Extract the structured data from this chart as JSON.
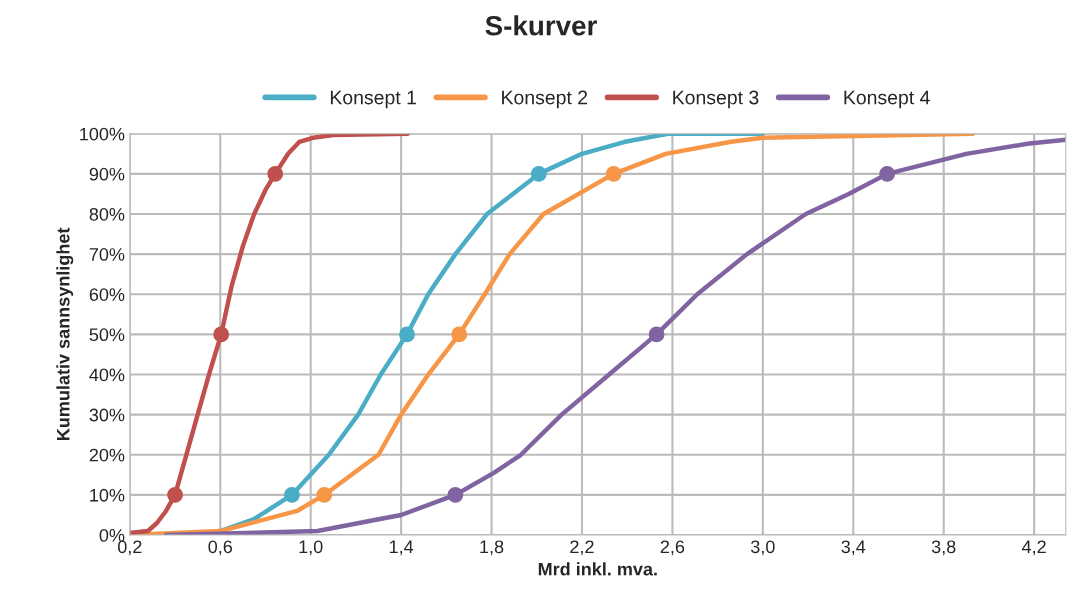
{
  "chart_data": {
    "type": "line",
    "title": "S-kurver",
    "xlabel": "Mrd inkl. mva.",
    "ylabel": "Kumulativ sannsynlighet",
    "xlim": [
      0.2,
      4.34
    ],
    "xticks": [
      {
        "value": 0.2,
        "label": "0,2"
      },
      {
        "value": 0.6,
        "label": "0,6"
      },
      {
        "value": 1.0,
        "label": "1,0"
      },
      {
        "value": 1.4,
        "label": "1,4"
      },
      {
        "value": 1.8,
        "label": "1,8"
      },
      {
        "value": 2.2,
        "label": "2,2"
      },
      {
        "value": 2.6,
        "label": "2,6"
      },
      {
        "value": 3.0,
        "label": "3,0"
      },
      {
        "value": 3.4,
        "label": "3,4"
      },
      {
        "value": 3.8,
        "label": "3,8"
      },
      {
        "value": 4.2,
        "label": "4,2"
      }
    ],
    "ylim": [
      0,
      100
    ],
    "yticks": [
      {
        "value": 0,
        "label": "0%"
      },
      {
        "value": 10,
        "label": "10%"
      },
      {
        "value": 20,
        "label": "20%"
      },
      {
        "value": 30,
        "label": "30%"
      },
      {
        "value": 40,
        "label": "40%"
      },
      {
        "value": 50,
        "label": "50%"
      },
      {
        "value": 60,
        "label": "60%"
      },
      {
        "value": 70,
        "label": "70%"
      },
      {
        "value": 80,
        "label": "80%"
      },
      {
        "value": 90,
        "label": "90%"
      },
      {
        "value": 100,
        "label": "100%"
      }
    ],
    "grid": true,
    "legend": "top",
    "marker": "none",
    "line_style": "solid",
    "series": [
      {
        "name": "Konsept 1",
        "color": "#4bacc6",
        "x": [
          0.6,
          0.75,
          0.917,
          1.08,
          1.21,
          1.31,
          1.426,
          1.52,
          1.64,
          1.78,
          2.009,
          2.2,
          2.39,
          2.58,
          3.0
        ],
        "values": [
          1,
          4,
          10,
          20,
          30,
          40,
          50,
          60,
          70,
          80,
          90,
          95,
          98,
          100,
          100
        ]
      },
      {
        "name": "Konsept 2",
        "color": "#f79646",
        "x": [
          0.2,
          0.6,
          0.94,
          1.06,
          1.3,
          1.4,
          1.52,
          1.657,
          1.77,
          1.88,
          2.03,
          2.34,
          2.57,
          2.86,
          3.0,
          3.93
        ],
        "values": [
          0,
          1,
          6,
          10,
          20,
          30,
          40,
          50,
          60,
          70,
          80,
          90,
          95,
          98,
          99,
          100
        ]
      },
      {
        "name": "Konsept 3",
        "color": "#c0504d",
        "x": [
          0.2,
          0.28,
          0.32,
          0.36,
          0.4,
          0.45,
          0.5,
          0.55,
          0.604,
          0.65,
          0.7,
          0.75,
          0.8,
          0.843,
          0.9,
          0.95,
          1.01,
          1.1,
          1.43
        ],
        "values": [
          0.5,
          1,
          3,
          6,
          10,
          20,
          30,
          40,
          50,
          62,
          72,
          80,
          86,
          90,
          95,
          98,
          99,
          99.7,
          100
        ]
      },
      {
        "name": "Konsept 4",
        "color": "#8064a2",
        "x": [
          0.36,
          1.03,
          1.26,
          1.4,
          1.64,
          1.81,
          1.93,
          2.11,
          2.32,
          2.53,
          2.71,
          2.93,
          3.19,
          3.38,
          3.55,
          3.9,
          4.17,
          4.34
        ],
        "values": [
          0,
          1,
          3.5,
          5,
          10,
          15.5,
          20,
          30,
          40,
          50,
          60,
          70,
          80,
          85,
          90,
          95,
          97.5,
          98.5
        ]
      },
      {
        "type": "scatter",
        "marker": "circle",
        "color": "#4bacc6",
        "x": [
          0.917,
          1.426,
          2.009
        ],
        "values": [
          10,
          50,
          90
        ]
      },
      {
        "type": "scatter",
        "marker": "circle",
        "color": "#f79646",
        "x": [
          1.06,
          1.657,
          2.34
        ],
        "values": [
          10,
          50,
          90
        ]
      },
      {
        "type": "scatter",
        "marker": "circle",
        "color": "#c0504d",
        "x": [
          0.4,
          0.604,
          0.843
        ],
        "values": [
          10,
          50,
          90
        ]
      },
      {
        "type": "scatter",
        "marker": "circle",
        "color": "#8064a2",
        "x": [
          1.64,
          2.53,
          3.55
        ],
        "values": [
          10,
          50,
          90
        ]
      }
    ]
  }
}
